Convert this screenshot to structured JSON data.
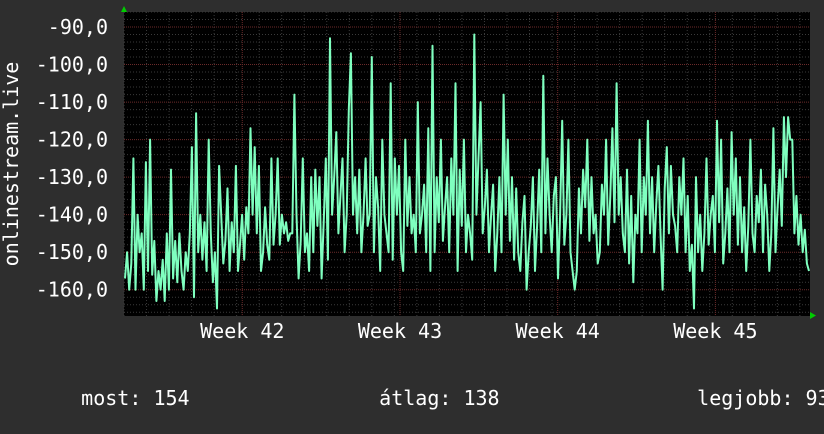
{
  "colors": {
    "background": "#2e2e2e",
    "plot_background": "#000000",
    "line": "#7fffbf",
    "grid_major": "#6b2a2a",
    "grid_minor": "#3a3a3a",
    "arrow": "#00cc00"
  },
  "chart_data": {
    "type": "line",
    "ylabel": "onlinestream.live",
    "xlabel": "",
    "title": "",
    "ylim": [
      -167,
      -86
    ],
    "yticks": [
      "-90,0",
      "-100,0",
      "-110,0",
      "-120,0",
      "-130,0",
      "-140,0",
      "-150,0",
      "-160,0"
    ],
    "ytick_values": [
      -90,
      -100,
      -110,
      -120,
      -130,
      -140,
      -150,
      -160
    ],
    "xticks": [
      "Week 42",
      "Week 43",
      "Week 44",
      "Week 45"
    ],
    "xtick_positions": [
      42,
      43,
      44,
      45
    ],
    "xlim": [
      41.25,
      45.6
    ],
    "grid": true,
    "series": [
      {
        "values": [
          -157,
          -150,
          -160,
          -153,
          -125,
          -160,
          -140,
          -150,
          -145,
          -160,
          -126,
          -155,
          -120,
          -156,
          -147,
          -163,
          -155,
          -160,
          -152,
          -163,
          -145,
          -160,
          -128,
          -157,
          -147,
          -158,
          -145,
          -155,
          -160,
          -150,
          -155,
          -145,
          -122,
          -162,
          -113,
          -150,
          -140,
          -152,
          -142,
          -155,
          -120,
          -145,
          -158,
          -150,
          -165,
          -127,
          -140,
          -153,
          -147,
          -133,
          -155,
          -142,
          -150,
          -127,
          -155,
          -148,
          -140,
          -152,
          -138,
          -145,
          -117,
          -140,
          -122,
          -145,
          -127,
          -155,
          -150,
          -138,
          -148,
          -152,
          -125,
          -148,
          -140,
          -125,
          -148,
          -140,
          -145,
          -142,
          -147,
          -145,
          -145,
          -108,
          -140,
          -157,
          -147,
          -125,
          -150,
          -145,
          -155,
          -130,
          -150,
          -128,
          -143,
          -130,
          -157,
          -142,
          -125,
          -152,
          -93,
          -140,
          -130,
          -118,
          -145,
          -135,
          -125,
          -150,
          -140,
          -112,
          -97,
          -140,
          -130,
          -145,
          -128,
          -150,
          -140,
          -125,
          -143,
          -140,
          -98,
          -150,
          -130,
          -138,
          -155,
          -120,
          -140,
          -145,
          -150,
          -105,
          -152,
          -125,
          -140,
          -127,
          -150,
          -155,
          -120,
          -143,
          -130,
          -145,
          -140,
          -150,
          -110,
          -145,
          -140,
          -132,
          -150,
          -117,
          -155,
          -95,
          -150,
          -130,
          -142,
          -120,
          -147,
          -138,
          -130,
          -150,
          -125,
          -140,
          -105,
          -155,
          -128,
          -143,
          -120,
          -150,
          -140,
          -145,
          -152,
          -92,
          -140,
          -125,
          -110,
          -145,
          -138,
          -128,
          -150,
          -140,
          -132,
          -155,
          -145,
          -130,
          -150,
          -108,
          -140,
          -120,
          -147,
          -130,
          -152,
          -133,
          -150,
          -155,
          -142,
          -135,
          -160,
          -150,
          -143,
          -130,
          -155,
          -143,
          -128,
          -150,
          -103,
          -145,
          -125,
          -140,
          -150,
          -135,
          -130,
          -157,
          -140,
          -115,
          -148,
          -140,
          -120,
          -150,
          -155,
          -160,
          -155,
          -133,
          -145,
          -128,
          -138,
          -120,
          -147,
          -130,
          -145,
          -140,
          -153,
          -150,
          -132,
          -140,
          -120,
          -148,
          -135,
          -117,
          -142,
          -105,
          -140,
          -130,
          -145,
          -150,
          -128,
          -153,
          -135,
          -158,
          -140,
          -145,
          -120,
          -150,
          -130,
          -140,
          -115,
          -145,
          -130,
          -150,
          -137,
          -127,
          -145,
          -160,
          -133,
          -122,
          -145,
          -127,
          -140,
          -143,
          -150,
          -130,
          -140,
          -125,
          -150,
          -135,
          -155,
          -148,
          -165,
          -130,
          -150,
          -140,
          -155,
          -145,
          -125,
          -148,
          -140,
          -135,
          -150,
          -115,
          -142,
          -120,
          -153,
          -145,
          -133,
          -150,
          -118,
          -140,
          -125,
          -148,
          -130,
          -150,
          -138,
          -155,
          -143,
          -120,
          -145,
          -150,
          -135,
          -142,
          -128,
          -150,
          -132,
          -140,
          -155,
          -145,
          -117,
          -150,
          -138,
          -128,
          -143,
          -114,
          -130,
          -114,
          -120,
          -120,
          -145,
          -135,
          -148,
          -140,
          -150,
          -144,
          -153,
          -155
        ]
      }
    ]
  },
  "footer": {
    "now_label": "most:",
    "now_value": "154",
    "avg_label": "átlag:",
    "avg_value": "138",
    "best_label": "legjobb:",
    "best_value": "93"
  }
}
